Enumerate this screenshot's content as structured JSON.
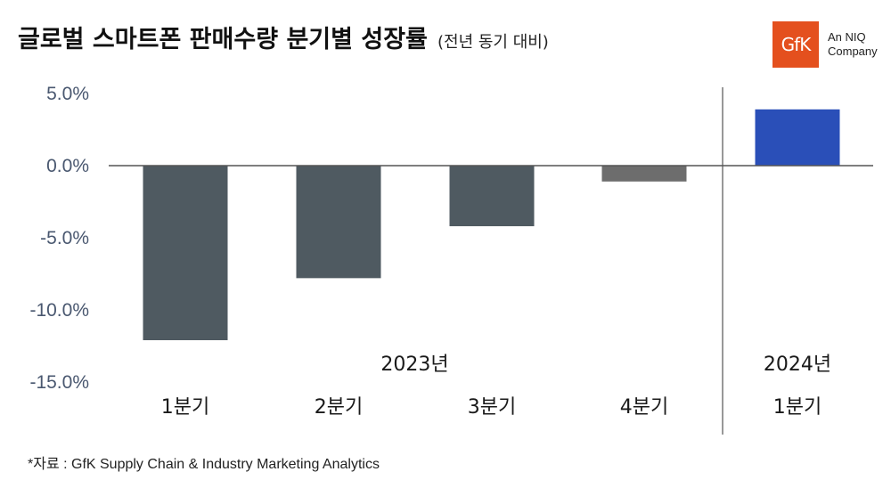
{
  "header": {
    "title": "글로벌 스마트폰 판매수량 분기별 성장률",
    "subtitle": "(전년 동기 대비)"
  },
  "logo": {
    "text": "GfK",
    "tag_line1": "An NIQ",
    "tag_line2": "Company",
    "color": "#e4501e"
  },
  "chart_data": {
    "type": "bar",
    "title": "글로벌 스마트폰 판매수량 분기별 성장률",
    "subtitle": "(전년 동기 대비)",
    "categories": [
      "1분기",
      "2분기",
      "3분기",
      "4분기",
      "1분기"
    ],
    "groups": [
      {
        "label": "2023년",
        "start": 0,
        "end": 3
      },
      {
        "label": "2024년",
        "start": 4,
        "end": 4
      }
    ],
    "values": [
      -12.1,
      -7.8,
      -4.2,
      -1.1,
      3.9
    ],
    "bar_colors": [
      "#4f5a61",
      "#4f5a61",
      "#4f5a61",
      "#6d6d6d",
      "#2a4fb8"
    ],
    "yticks": [
      5.0,
      0.0,
      -5.0,
      -10.0,
      -15.0
    ],
    "ytick_labels": [
      "5.0%",
      "0.0%",
      "-5.0%",
      "-10.0%",
      "-15.0%"
    ],
    "ylim": [
      -15,
      5
    ],
    "xlabel": "",
    "ylabel": "",
    "grid": false,
    "legend": "none"
  },
  "source": "*자료 : GfK Supply Chain & Industry Marketing Analytics"
}
